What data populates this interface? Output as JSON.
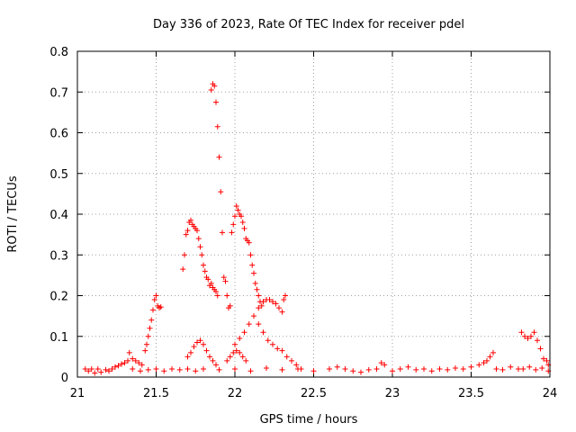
{
  "chart_data": {
    "type": "scatter",
    "title": "Day 336 of 2023, Rate Of TEC Index for receiver pdel",
    "xlabel": "GPS time / hours",
    "ylabel": "ROTI / TECUs",
    "xlim": [
      21,
      24
    ],
    "ylim": [
      0,
      0.8
    ],
    "xticks": [
      "21",
      "21.5",
      "22",
      "22.5",
      "23",
      "23.5",
      "24"
    ],
    "yticks": [
      "0",
      "0.1",
      "0.2",
      "0.3",
      "0.4",
      "0.5",
      "0.6",
      "0.7",
      "0.8"
    ],
    "grid": true,
    "marker": "plus",
    "color": "#ff0000",
    "series": [
      {
        "name": "ROTI",
        "points": [
          [
            21.05,
            0.02
          ],
          [
            21.07,
            0.015
          ],
          [
            21.09,
            0.02
          ],
          [
            21.11,
            0.01
          ],
          [
            21.13,
            0.02
          ],
          [
            21.15,
            0.012
          ],
          [
            21.18,
            0.018
          ],
          [
            21.2,
            0.015
          ],
          [
            21.22,
            0.02
          ],
          [
            21.24,
            0.025
          ],
          [
            21.26,
            0.028
          ],
          [
            21.28,
            0.032
          ],
          [
            21.3,
            0.035
          ],
          [
            21.32,
            0.04
          ],
          [
            21.33,
            0.06
          ],
          [
            21.35,
            0.045
          ],
          [
            21.37,
            0.04
          ],
          [
            21.39,
            0.035
          ],
          [
            21.41,
            0.03
          ],
          [
            21.43,
            0.065
          ],
          [
            21.44,
            0.08
          ],
          [
            21.45,
            0.1
          ],
          [
            21.46,
            0.12
          ],
          [
            21.47,
            0.14
          ],
          [
            21.48,
            0.165
          ],
          [
            21.49,
            0.19
          ],
          [
            21.5,
            0.2
          ],
          [
            21.51,
            0.175
          ],
          [
            21.52,
            0.17
          ],
          [
            21.53,
            0.172
          ],
          [
            21.35,
            0.02
          ],
          [
            21.4,
            0.015
          ],
          [
            21.45,
            0.018
          ],
          [
            21.5,
            0.02
          ],
          [
            21.55,
            0.015
          ],
          [
            21.6,
            0.02
          ],
          [
            21.65,
            0.018
          ],
          [
            21.67,
            0.265
          ],
          [
            21.68,
            0.3
          ],
          [
            21.69,
            0.35
          ],
          [
            21.7,
            0.36
          ],
          [
            21.71,
            0.38
          ],
          [
            21.72,
            0.385
          ],
          [
            21.73,
            0.375
          ],
          [
            21.74,
            0.37
          ],
          [
            21.75,
            0.365
          ],
          [
            21.76,
            0.36
          ],
          [
            21.77,
            0.34
          ],
          [
            21.78,
            0.32
          ],
          [
            21.79,
            0.3
          ],
          [
            21.8,
            0.275
          ],
          [
            21.81,
            0.26
          ],
          [
            21.82,
            0.245
          ],
          [
            21.83,
            0.24
          ],
          [
            21.84,
            0.225
          ],
          [
            21.85,
            0.23
          ],
          [
            21.86,
            0.22
          ],
          [
            21.87,
            0.215
          ],
          [
            21.88,
            0.21
          ],
          [
            21.89,
            0.2
          ],
          [
            21.7,
            0.05
          ],
          [
            21.72,
            0.06
          ],
          [
            21.74,
            0.075
          ],
          [
            21.76,
            0.085
          ],
          [
            21.78,
            0.09
          ],
          [
            21.8,
            0.08
          ],
          [
            21.82,
            0.065
          ],
          [
            21.84,
            0.05
          ],
          [
            21.86,
            0.04
          ],
          [
            21.88,
            0.03
          ],
          [
            21.85,
            0.705
          ],
          [
            21.86,
            0.72
          ],
          [
            21.87,
            0.715
          ],
          [
            21.88,
            0.675
          ],
          [
            21.89,
            0.615
          ],
          [
            21.9,
            0.54
          ],
          [
            21.91,
            0.455
          ],
          [
            21.92,
            0.355
          ],
          [
            21.93,
            0.245
          ],
          [
            21.94,
            0.235
          ],
          [
            21.95,
            0.2
          ],
          [
            21.96,
            0.17
          ],
          [
            21.97,
            0.175
          ],
          [
            21.98,
            0.355
          ],
          [
            21.99,
            0.375
          ],
          [
            22.0,
            0.395
          ],
          [
            22.01,
            0.42
          ],
          [
            22.02,
            0.41
          ],
          [
            22.03,
            0.4
          ],
          [
            22.04,
            0.395
          ],
          [
            22.05,
            0.38
          ],
          [
            22.06,
            0.365
          ],
          [
            22.07,
            0.34
          ],
          [
            22.08,
            0.335
          ],
          [
            22.09,
            0.33
          ],
          [
            22.1,
            0.3
          ],
          [
            22.11,
            0.275
          ],
          [
            22.12,
            0.255
          ],
          [
            22.13,
            0.23
          ],
          [
            22.14,
            0.215
          ],
          [
            22.15,
            0.2
          ],
          [
            22.16,
            0.185
          ],
          [
            22.17,
            0.175
          ],
          [
            21.95,
            0.04
          ],
          [
            21.97,
            0.05
          ],
          [
            21.99,
            0.06
          ],
          [
            22.01,
            0.065
          ],
          [
            22.03,
            0.06
          ],
          [
            22.05,
            0.05
          ],
          [
            22.07,
            0.04
          ],
          [
            22.0,
            0.08
          ],
          [
            22.03,
            0.095
          ],
          [
            22.06,
            0.11
          ],
          [
            22.09,
            0.13
          ],
          [
            22.12,
            0.15
          ],
          [
            22.15,
            0.17
          ],
          [
            22.18,
            0.185
          ],
          [
            22.2,
            0.19
          ],
          [
            22.22,
            0.19
          ],
          [
            22.24,
            0.185
          ],
          [
            22.26,
            0.18
          ],
          [
            22.28,
            0.17
          ],
          [
            22.3,
            0.16
          ],
          [
            22.31,
            0.19
          ],
          [
            22.32,
            0.2
          ],
          [
            22.15,
            0.13
          ],
          [
            22.18,
            0.11
          ],
          [
            22.21,
            0.09
          ],
          [
            22.24,
            0.08
          ],
          [
            22.27,
            0.07
          ],
          [
            22.3,
            0.065
          ],
          [
            22.33,
            0.05
          ],
          [
            22.36,
            0.04
          ],
          [
            22.39,
            0.03
          ],
          [
            22.42,
            0.02
          ],
          [
            21.7,
            0.02
          ],
          [
            21.75,
            0.015
          ],
          [
            21.8,
            0.02
          ],
          [
            21.9,
            0.018
          ],
          [
            22.0,
            0.02
          ],
          [
            22.1,
            0.015
          ],
          [
            22.2,
            0.022
          ],
          [
            22.3,
            0.018
          ],
          [
            22.4,
            0.02
          ],
          [
            22.5,
            0.015
          ],
          [
            22.6,
            0.02
          ],
          [
            22.65,
            0.025
          ],
          [
            22.7,
            0.02
          ],
          [
            22.75,
            0.015
          ],
          [
            22.8,
            0.012
          ],
          [
            22.85,
            0.018
          ],
          [
            22.9,
            0.02
          ],
          [
            22.93,
            0.035
          ],
          [
            22.95,
            0.03
          ],
          [
            23.0,
            0.015
          ],
          [
            23.05,
            0.02
          ],
          [
            23.1,
            0.025
          ],
          [
            23.15,
            0.018
          ],
          [
            23.2,
            0.02
          ],
          [
            23.25,
            0.015
          ],
          [
            23.3,
            0.02
          ],
          [
            23.35,
            0.018
          ],
          [
            23.4,
            0.022
          ],
          [
            23.45,
            0.02
          ],
          [
            23.5,
            0.025
          ],
          [
            23.55,
            0.03
          ],
          [
            23.58,
            0.035
          ],
          [
            23.6,
            0.04
          ],
          [
            23.62,
            0.05
          ],
          [
            23.64,
            0.06
          ],
          [
            23.66,
            0.02
          ],
          [
            23.7,
            0.018
          ],
          [
            23.75,
            0.025
          ],
          [
            23.8,
            0.02
          ],
          [
            23.82,
            0.11
          ],
          [
            23.84,
            0.1
          ],
          [
            23.86,
            0.095
          ],
          [
            23.88,
            0.1
          ],
          [
            23.9,
            0.11
          ],
          [
            23.92,
            0.09
          ],
          [
            23.94,
            0.07
          ],
          [
            23.96,
            0.045
          ],
          [
            23.98,
            0.04
          ],
          [
            23.99,
            0.03
          ],
          [
            23.83,
            0.02
          ],
          [
            23.87,
            0.025
          ],
          [
            23.91,
            0.018
          ],
          [
            23.95,
            0.022
          ],
          [
            23.99,
            0.015
          ]
        ]
      }
    ]
  }
}
